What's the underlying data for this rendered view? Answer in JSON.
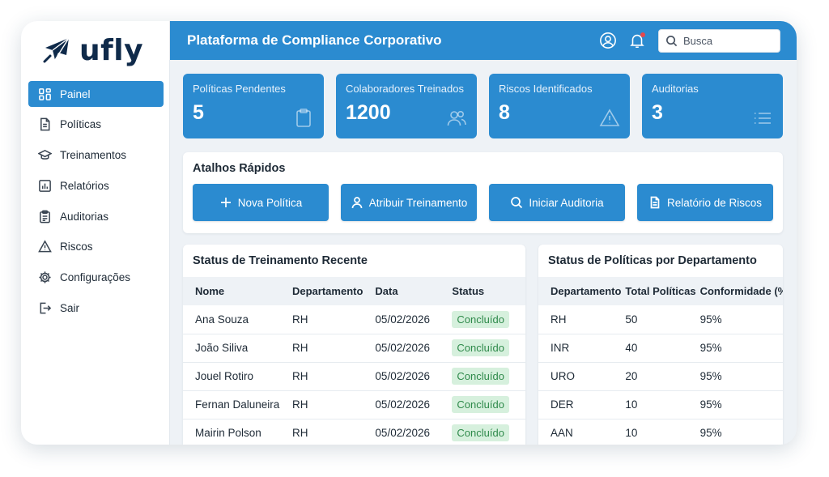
{
  "brand": {
    "name": "ufly"
  },
  "header": {
    "title": "Plataforma de Compliance Corporativo",
    "search_placeholder": "Busca"
  },
  "sidebar": {
    "items": [
      {
        "label": "Painel",
        "icon": "dashboard-icon",
        "active": true
      },
      {
        "label": "Políticas",
        "icon": "document-icon"
      },
      {
        "label": "Treinamentos",
        "icon": "graduation-cap-icon"
      },
      {
        "label": "Relatórios",
        "icon": "bar-chart-icon"
      },
      {
        "label": "Auditorias",
        "icon": "clipboard-icon"
      },
      {
        "label": "Riscos",
        "icon": "warning-icon"
      },
      {
        "label": "Configurações",
        "icon": "gear-icon"
      },
      {
        "label": "Sair",
        "icon": "logout-icon"
      }
    ]
  },
  "stats": [
    {
      "label": "Políticas Pendentes",
      "value": "5",
      "icon": "clipboard-icon"
    },
    {
      "label": "Colaboradores Treinados",
      "value": "1200",
      "icon": "users-icon"
    },
    {
      "label": "Riscos Identificados",
      "value": "8",
      "icon": "warning-icon"
    },
    {
      "label": "Auditorias",
      "value": "3",
      "icon": "list-icon"
    }
  ],
  "quick_actions": {
    "title": "Atalhos Rápidos",
    "buttons": [
      {
        "label": "Nova Política",
        "icon": "plus-icon"
      },
      {
        "label": "Atribuir Treinamento",
        "icon": "user-icon"
      },
      {
        "label": "Iniciar Auditoria",
        "icon": "search-icon"
      },
      {
        "label": "Relatório de Riscos",
        "icon": "document-icon"
      }
    ]
  },
  "training": {
    "title": "Status de Treinamento Recente",
    "columns": [
      "Nome",
      "Departamento",
      "Data",
      "Status"
    ],
    "rows": [
      {
        "nome": "Ana Souza",
        "departamento": "RH",
        "data": "05/02/2026",
        "status": "Concluído"
      },
      {
        "nome": "João Siliva",
        "departamento": "RH",
        "data": "05/02/2026",
        "status": "Concluído"
      },
      {
        "nome": "Jouel Rotiro",
        "departamento": "RH",
        "data": "05/02/2026",
        "status": "Concluído"
      },
      {
        "nome": "Fernan Daluneira",
        "departamento": "RH",
        "data": "05/02/2026",
        "status": "Concluído"
      },
      {
        "nome": "Mairin Polson",
        "departamento": "RH",
        "data": "05/02/2026",
        "status": "Concluído"
      }
    ]
  },
  "policies": {
    "title": "Status de Políticas por Departamento",
    "columns": [
      "Departamento",
      "Total Políticas",
      "Conformidade (%)"
    ],
    "rows": [
      {
        "departamento": "RH",
        "total": "50",
        "conformidade": "95%"
      },
      {
        "departamento": "INR",
        "total": "40",
        "conformidade": "95%"
      },
      {
        "departamento": "URO",
        "total": "20",
        "conformidade": "95%"
      },
      {
        "departamento": "DER",
        "total": "10",
        "conformidade": "95%"
      },
      {
        "departamento": "AAN",
        "total": "10",
        "conformidade": "95%"
      }
    ]
  },
  "colors": {
    "primary": "#2b8bd0",
    "brand_dark": "#0f2a4a",
    "success_bg": "#d6f0dd",
    "success_text": "#2f8a4b",
    "notification": "#e5484d"
  }
}
